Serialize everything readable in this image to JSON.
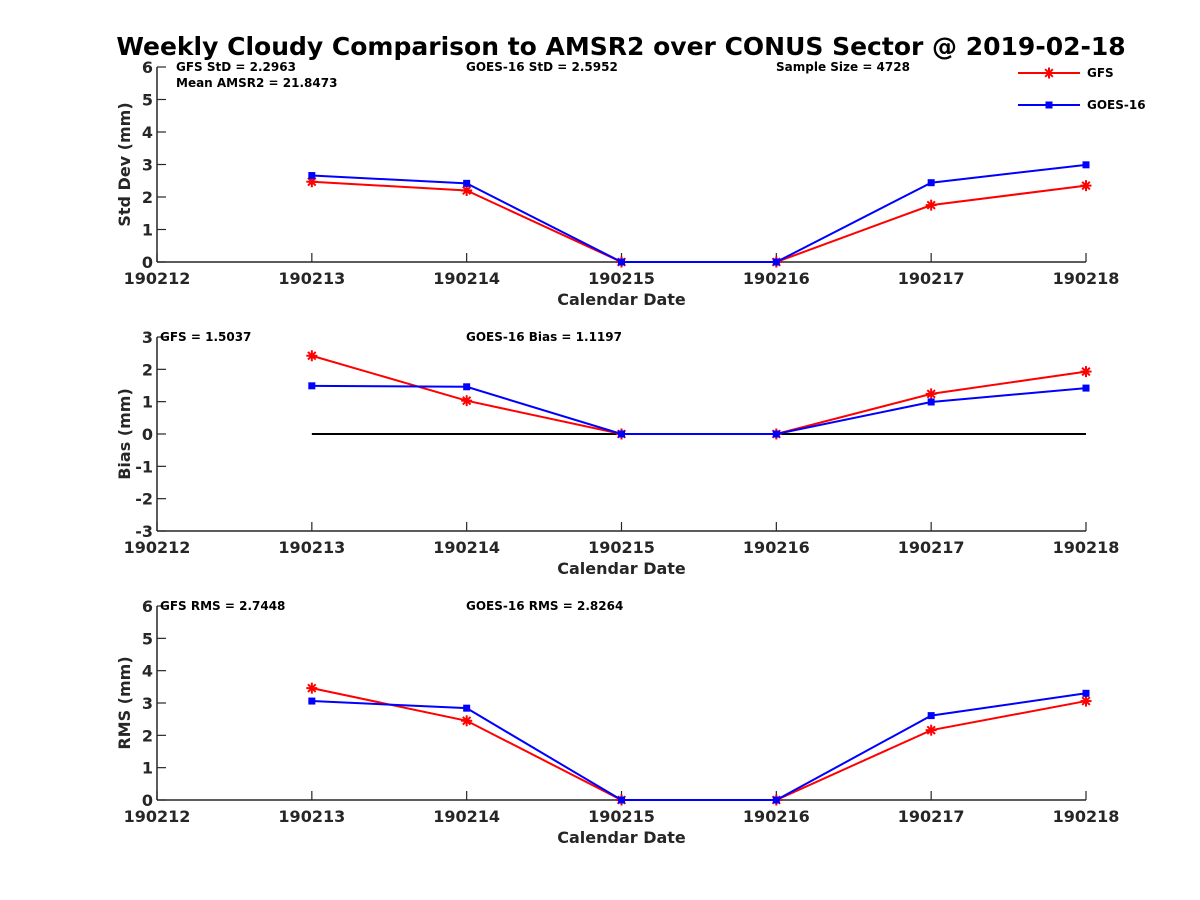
{
  "chart_data": {
    "title": "Weekly Cloudy Comparison to AMSR2 over CONUS Sector @ 2019-02-18",
    "legend": {
      "placement": "top-right",
      "entries": [
        {
          "label": "GFS",
          "color": "#ff0000",
          "marker": "asterisk"
        },
        {
          "label": "GOES-16",
          "color": "#0000ff",
          "marker": "square"
        }
      ]
    },
    "panels": [
      {
        "type": "line",
        "xlabel": "Calendar Date",
        "ylabel": "Std Dev (mm)",
        "x_ticks": [
          "190212",
          "190213",
          "190214",
          "190215",
          "190216",
          "190217",
          "190218"
        ],
        "ylim": [
          0,
          6
        ],
        "y_ticks": [
          "0",
          "1",
          "2",
          "3",
          "4",
          "5",
          "6"
        ],
        "zero_line": false,
        "annotations": [
          {
            "text": "GFS StD = 2.2963",
            "col": "left",
            "line": 0
          },
          {
            "text": "Mean AMSR2 = 21.8473",
            "col": "left",
            "line": 1
          },
          {
            "text": "GOES-16 StD = 2.5952",
            "col": "middle",
            "line": 0
          },
          {
            "text": "Sample Size = 4728",
            "col": "right",
            "line": 0
          }
        ],
        "series": [
          {
            "name": "GFS",
            "x": [
              "190213",
              "190214",
              "190215",
              "190216",
              "190217",
              "190218"
            ],
            "values": [
              2.47,
              2.2,
              0,
              0,
              1.75,
              2.35
            ]
          },
          {
            "name": "GOES-16",
            "x": [
              "190213",
              "190214",
              "190215",
              "190216",
              "190217",
              "190218"
            ],
            "values": [
              2.66,
              2.42,
              0,
              0,
              2.44,
              2.99
            ]
          }
        ]
      },
      {
        "type": "line",
        "xlabel": "Calendar Date",
        "ylabel": "Bias (mm)",
        "x_ticks": [
          "190212",
          "190213",
          "190214",
          "190215",
          "190216",
          "190217",
          "190218"
        ],
        "ylim": [
          -3,
          3
        ],
        "y_ticks": [
          "-3",
          "-2",
          "-1",
          "0",
          "1",
          "2",
          "3"
        ],
        "zero_line": true,
        "annotations": [
          {
            "text": "GFS = 1.5037",
            "col": "left",
            "line": 0
          },
          {
            "text": "GOES-16 Bias  = 1.1197",
            "col": "middle",
            "line": 0
          }
        ],
        "series": [
          {
            "name": "GFS",
            "x": [
              "190213",
              "190214",
              "190215",
              "190216",
              "190217",
              "190218"
            ],
            "values": [
              2.42,
              1.03,
              0,
              0,
              1.24,
              1.93
            ]
          },
          {
            "name": "GOES-16",
            "x": [
              "190213",
              "190214",
              "190215",
              "190216",
              "190217",
              "190218"
            ],
            "values": [
              1.49,
              1.46,
              0,
              0,
              0.99,
              1.42
            ]
          }
        ]
      },
      {
        "type": "line",
        "xlabel": "Calendar Date",
        "ylabel": "RMS (mm)",
        "x_ticks": [
          "190212",
          "190213",
          "190214",
          "190215",
          "190216",
          "190217",
          "190218"
        ],
        "ylim": [
          0,
          6
        ],
        "y_ticks": [
          "0",
          "1",
          "2",
          "3",
          "4",
          "5",
          "6"
        ],
        "zero_line": false,
        "annotations": [
          {
            "text": "GFS RMS = 2.7448",
            "col": "left",
            "line": 0
          },
          {
            "text": "GOES-16 RMS = 2.8264",
            "col": "middle",
            "line": 0
          }
        ],
        "series": [
          {
            "name": "GFS",
            "x": [
              "190213",
              "190214",
              "190215",
              "190216",
              "190217",
              "190218"
            ],
            "values": [
              3.46,
              2.45,
              0,
              0,
              2.16,
              3.06
            ]
          },
          {
            "name": "GOES-16",
            "x": [
              "190213",
              "190214",
              "190215",
              "190216",
              "190217",
              "190218"
            ],
            "values": [
              3.06,
              2.84,
              0,
              0,
              2.61,
              3.3
            ]
          }
        ]
      }
    ]
  }
}
